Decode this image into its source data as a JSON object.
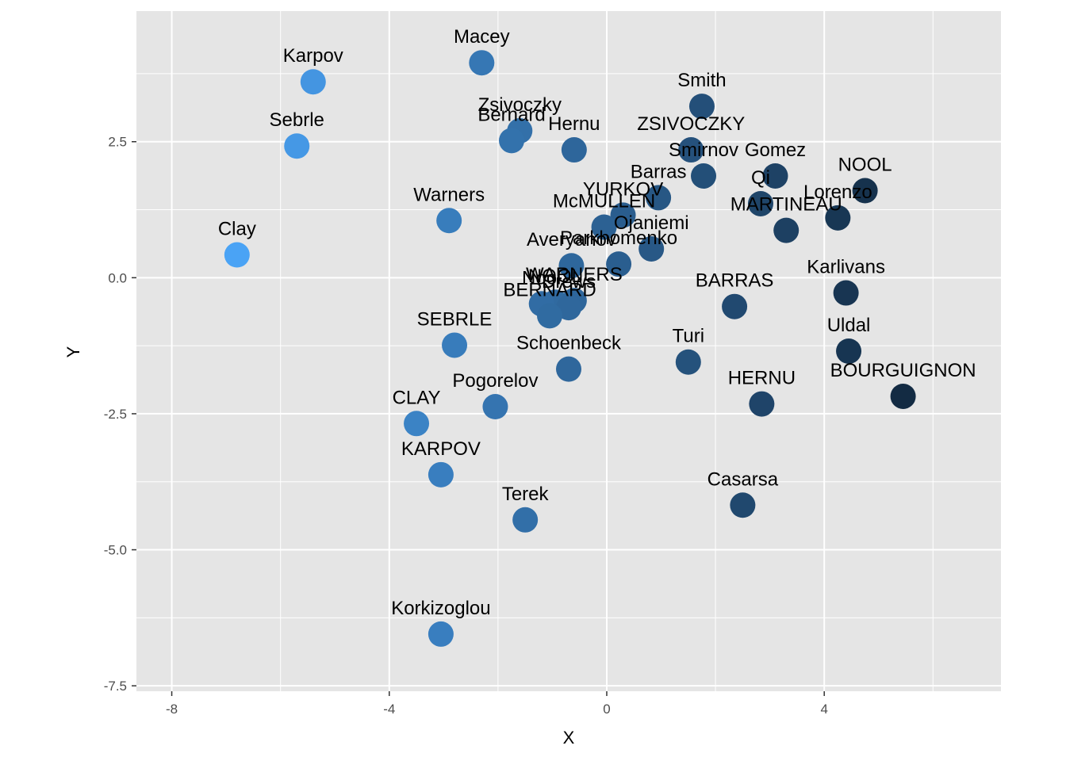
{
  "chart_data": {
    "type": "scatter",
    "xlabel": "X",
    "ylabel": "Y",
    "xlim": [
      -8.65,
      7.25
    ],
    "ylim": [
      -7.6,
      4.9
    ],
    "xticks": [
      -8,
      -4,
      0,
      4
    ],
    "xtick_labels": [
      "-8",
      "-4",
      "0",
      "4"
    ],
    "yticks": [
      -7.5,
      -5.0,
      -2.5,
      0.0,
      2.5
    ],
    "ytick_labels": [
      "-7.5",
      "-5.0",
      "-2.5",
      "0.0",
      "2.5"
    ],
    "grid": true,
    "colors": {
      "panel": "#e5e5e5",
      "grid": "#ffffff",
      "point_light": "#4aa3f5",
      "point_dark": "#132b43"
    },
    "points": [
      {
        "label": "Macey",
        "x": -2.3,
        "y": 3.95
      },
      {
        "label": "Karpov",
        "x": -5.4,
        "y": 3.6
      },
      {
        "label": "Sebrle",
        "x": -5.7,
        "y": 2.42
      },
      {
        "label": "Clay",
        "x": -6.8,
        "y": 0.42
      },
      {
        "label": "Zsivoczky",
        "x": -1.6,
        "y": 2.7
      },
      {
        "label": "Bernard",
        "x": -1.75,
        "y": 2.52
      },
      {
        "label": "Hernu",
        "x": -0.6,
        "y": 2.35
      },
      {
        "label": "Smith",
        "x": 1.75,
        "y": 3.15
      },
      {
        "label": "ZSIVOCZKY",
        "x": 1.55,
        "y": 2.35
      },
      {
        "label": "Smirnov",
        "x": 1.78,
        "y": 1.87
      },
      {
        "label": "Gomez",
        "x": 3.1,
        "y": 1.87
      },
      {
        "label": "NOOL",
        "x": 4.75,
        "y": 1.6
      },
      {
        "label": "Qi",
        "x": 2.83,
        "y": 1.36
      },
      {
        "label": "Lorenzo",
        "x": 4.25,
        "y": 1.1
      },
      {
        "label": "MARTINEAU",
        "x": 3.3,
        "y": 0.87
      },
      {
        "label": "Barras",
        "x": 0.95,
        "y": 1.47
      },
      {
        "label": "YURKOV",
        "x": 0.3,
        "y": 1.15
      },
      {
        "label": "McMULLEN",
        "x": -0.05,
        "y": 0.93
      },
      {
        "label": "Ojaniemi",
        "x": 0.82,
        "y": 0.53
      },
      {
        "label": "Averyanov",
        "x": -0.65,
        "y": 0.22
      },
      {
        "label": "Parkhomenko",
        "x": 0.22,
        "y": 0.25
      },
      {
        "label": "Warners",
        "x": -2.9,
        "y": 1.05
      },
      {
        "label": "WARNERS",
        "x": -0.6,
        "y": -0.42
      },
      {
        "label": "NOOL",
        "x": -0.95,
        "y": -0.45
      },
      {
        "label": "Drews",
        "x": -0.7,
        "y": -0.55
      },
      {
        "label": "Nool",
        "x": -1.2,
        "y": -0.48
      },
      {
        "label": "BERNARD",
        "x": -1.05,
        "y": -0.7
      },
      {
        "label": "Karlivans",
        "x": 4.4,
        "y": -0.28
      },
      {
        "label": "BARRAS",
        "x": 2.35,
        "y": -0.53
      },
      {
        "label": "SEBRLE",
        "x": -2.8,
        "y": -1.24
      },
      {
        "label": "Uldal",
        "x": 4.45,
        "y": -1.35
      },
      {
        "label": "Schoenbeck",
        "x": -0.7,
        "y": -1.68
      },
      {
        "label": "Turi",
        "x": 1.5,
        "y": -1.55
      },
      {
        "label": "BOURGUIGNON",
        "x": 5.45,
        "y": -2.18
      },
      {
        "label": "HERNU",
        "x": 2.85,
        "y": -2.32
      },
      {
        "label": "Pogorelov",
        "x": -2.05,
        "y": -2.37
      },
      {
        "label": "CLAY",
        "x": -3.5,
        "y": -2.68
      },
      {
        "label": "KARPOV",
        "x": -3.05,
        "y": -3.62
      },
      {
        "label": "Casarsa",
        "x": 2.5,
        "y": -4.18
      },
      {
        "label": "Terek",
        "x": -1.5,
        "y": -4.45
      },
      {
        "label": "Korkizoglou",
        "x": -3.05,
        "y": -6.55
      }
    ]
  }
}
